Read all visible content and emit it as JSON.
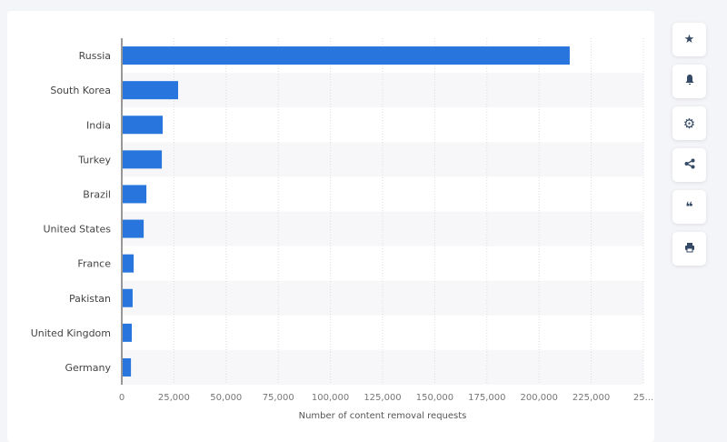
{
  "chart_data": {
    "type": "bar",
    "orientation": "horizontal",
    "categories": [
      "Russia",
      "South Korea",
      "India",
      "Turkey",
      "Brazil",
      "United States",
      "France",
      "Pakistan",
      "United Kingdom",
      "Germany"
    ],
    "values": [
      214700,
      27000,
      19600,
      19200,
      11800,
      10500,
      5700,
      5200,
      4800,
      4400
    ],
    "xlabel": "Number of content removal requests",
    "ylabel": "",
    "xlim": [
      0,
      250000
    ],
    "ticks": [
      "0",
      "25,000",
      "50,000",
      "75,000",
      "100,000",
      "125,000",
      "150,000",
      "175,000",
      "200,000",
      "225,000",
      "25..."
    ],
    "grid": true,
    "bar_color": "#2876dd"
  },
  "sidebar": [
    {
      "name": "star",
      "glyph": "★"
    },
    {
      "name": "bell",
      "glyph": "🔔︎"
    },
    {
      "name": "gear",
      "glyph": "⚙"
    },
    {
      "name": "share",
      "glyph": "<"
    },
    {
      "name": "quote",
      "glyph": "❝"
    },
    {
      "name": "print",
      "glyph": "⎙"
    }
  ]
}
